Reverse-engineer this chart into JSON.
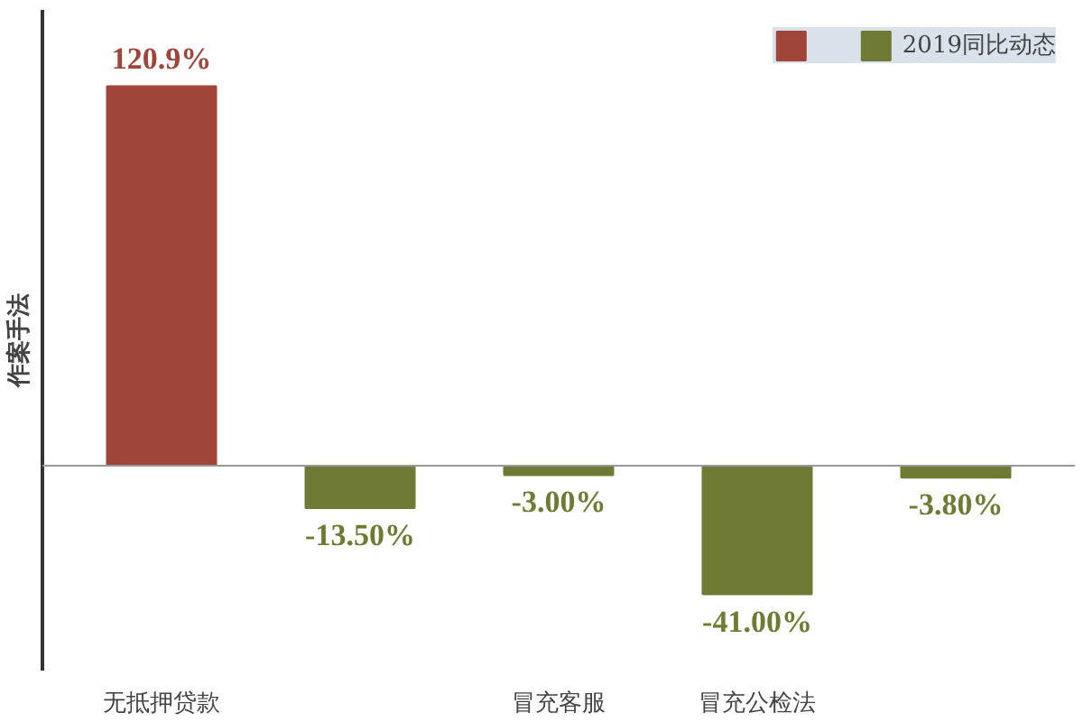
{
  "chart_data": {
    "type": "bar",
    "ylabel": "作案手法",
    "categories": [
      "无抵押贷款",
      null,
      "冒充客服",
      "冒充公检法",
      null
    ],
    "series": [
      {
        "name": "2019同比动态",
        "values": [
          120.9,
          -13.5,
          -3.0,
          -41.0,
          -3.8
        ],
        "value_labels": [
          "120.9%",
          "-13.50%",
          "-3.00%",
          "-41.00%",
          "-3.80%"
        ],
        "colors": [
          "#a0453a",
          "#6f7a35",
          "#6f7a35",
          "#6f7a35",
          "#6f7a35"
        ]
      }
    ],
    "tick_labels": "x",
    "grid": false,
    "legend": "top right"
  }
}
